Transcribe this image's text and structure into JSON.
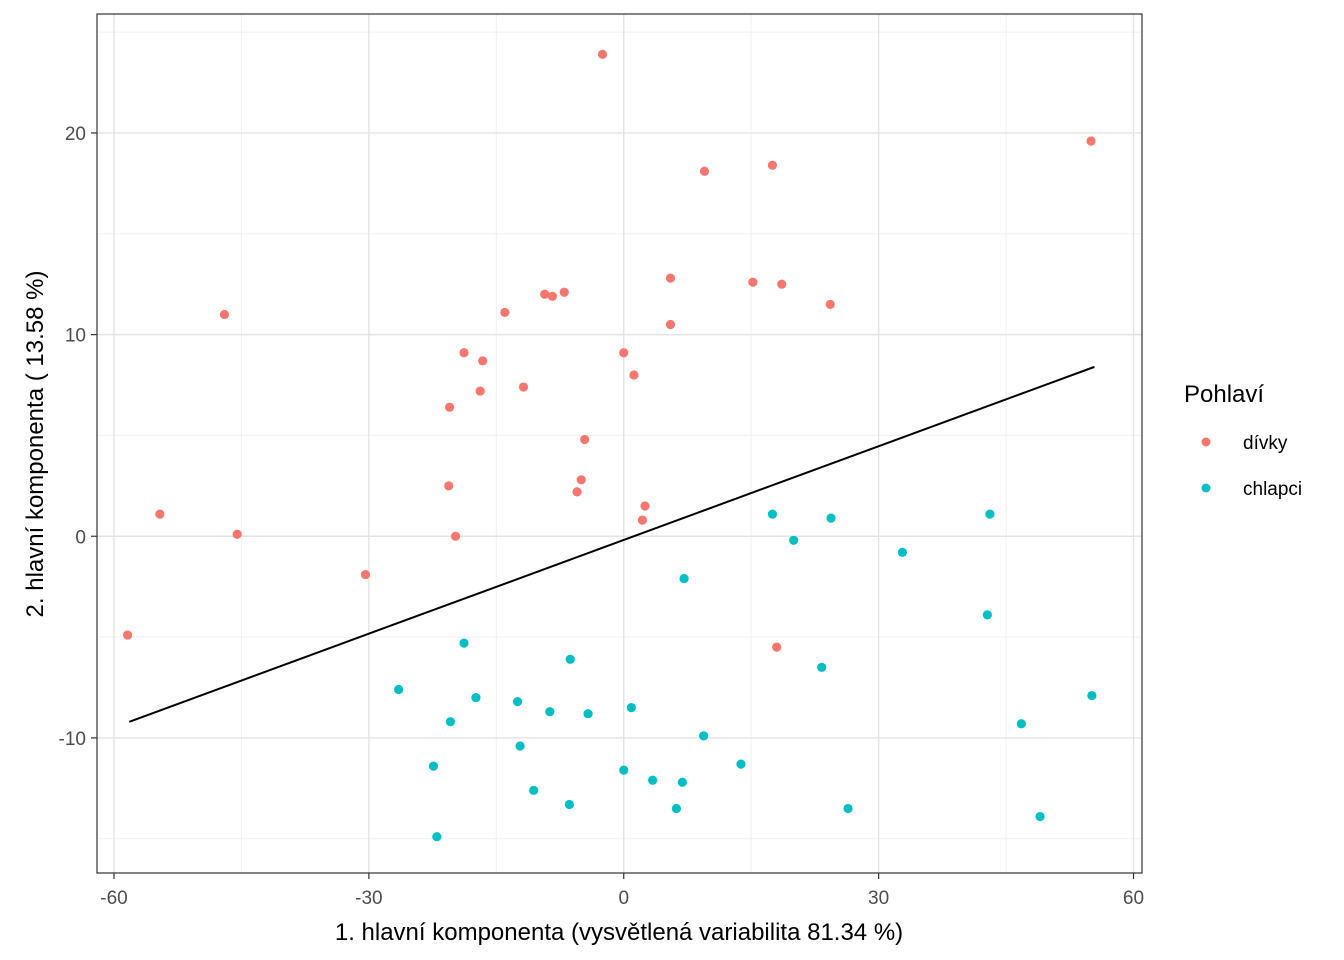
{
  "chart_data": {
    "type": "scatter",
    "xlabel": "1. hlavní komponenta (vysvětlená variabilita 81.34 %)",
    "ylabel": "2. hlavní komponenta ( 13.58 %)",
    "xlim": [
      -62,
      61
    ],
    "ylim": [
      -16.7,
      25.9
    ],
    "x_ticks": [
      -60,
      -30,
      0,
      30,
      60
    ],
    "x_tick_labels": [
      "-60",
      "-30",
      "0",
      "30",
      "60"
    ],
    "y_ticks": [
      -10,
      0,
      10,
      20
    ],
    "y_tick_labels": [
      "-10",
      "0",
      "10",
      "20"
    ],
    "grid": true,
    "legend": {
      "title": "Pohlaví",
      "position": "right"
    },
    "colors": {
      "divky": "#F8766D",
      "chlapci": "#00BFC4",
      "line": "#000000"
    },
    "series": [
      {
        "name": "dívky",
        "color": "#F8766D",
        "points": [
          [
            -2.5,
            23.9
          ],
          [
            55.0,
            19.6
          ],
          [
            9.5,
            18.1
          ],
          [
            17.5,
            18.4
          ],
          [
            5.5,
            12.8
          ],
          [
            15.2,
            12.6
          ],
          [
            18.6,
            12.5
          ],
          [
            24.3,
            11.5
          ],
          [
            -9.3,
            12.0
          ],
          [
            -8.4,
            11.9
          ],
          [
            -7.0,
            12.1
          ],
          [
            -14.0,
            11.1
          ],
          [
            -47.0,
            11.0
          ],
          [
            5.5,
            10.5
          ],
          [
            0.0,
            9.1
          ],
          [
            1.2,
            8.0
          ],
          [
            -18.8,
            9.1
          ],
          [
            -16.6,
            8.7
          ],
          [
            -11.8,
            7.4
          ],
          [
            -16.9,
            7.2
          ],
          [
            -20.5,
            6.4
          ],
          [
            -4.6,
            4.8
          ],
          [
            -5.0,
            2.8
          ],
          [
            -5.5,
            2.2
          ],
          [
            -20.6,
            2.5
          ],
          [
            2.5,
            1.5
          ],
          [
            2.2,
            0.8
          ],
          [
            -54.6,
            1.1
          ],
          [
            -45.5,
            0.1
          ],
          [
            -19.8,
            0.0
          ],
          [
            -30.4,
            -1.9
          ],
          [
            -58.4,
            -4.9
          ],
          [
            18.0,
            -5.5
          ]
        ]
      },
      {
        "name": "chlapci",
        "color": "#00BFC4",
        "points": [
          [
            17.5,
            1.1
          ],
          [
            24.4,
            0.9
          ],
          [
            43.1,
            1.1
          ],
          [
            20.0,
            -0.2
          ],
          [
            32.8,
            -0.8
          ],
          [
            7.1,
            -2.1
          ],
          [
            42.8,
            -3.9
          ],
          [
            -18.8,
            -5.3
          ],
          [
            -6.3,
            -6.1
          ],
          [
            23.3,
            -6.5
          ],
          [
            -26.5,
            -7.6
          ],
          [
            -17.4,
            -8.0
          ],
          [
            -12.5,
            -8.2
          ],
          [
            -8.7,
            -8.7
          ],
          [
            -4.2,
            -8.8
          ],
          [
            0.9,
            -8.5
          ],
          [
            -20.4,
            -9.2
          ],
          [
            46.8,
            -9.3
          ],
          [
            55.1,
            -7.9
          ],
          [
            9.4,
            -9.9
          ],
          [
            -12.2,
            -10.4
          ],
          [
            -22.4,
            -11.4
          ],
          [
            13.8,
            -11.3
          ],
          [
            0.0,
            -11.6
          ],
          [
            3.4,
            -12.1
          ],
          [
            6.9,
            -12.2
          ],
          [
            -10.6,
            -12.6
          ],
          [
            -6.4,
            -13.3
          ],
          [
            6.2,
            -13.5
          ],
          [
            26.4,
            -13.5
          ],
          [
            49.0,
            -13.9
          ],
          [
            -22.0,
            -14.9
          ]
        ]
      }
    ],
    "line": {
      "x": [
        -58.2,
        55.4
      ],
      "y": [
        -9.2,
        8.4
      ]
    }
  }
}
